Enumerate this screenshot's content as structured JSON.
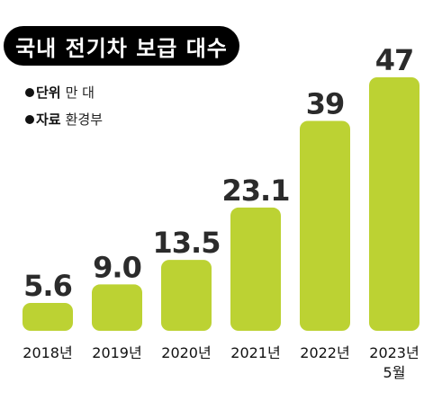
{
  "title": "국내 전기차 보급 대수",
  "unit": {
    "key": "단위",
    "value": "만 대"
  },
  "source": {
    "key": "자료",
    "value": "환경부"
  },
  "colors": {
    "bar": "#bcd233",
    "title_bg": "#000000",
    "title_text": "#ffffff",
    "value_text": "#2b2b2b"
  },
  "chart_data": {
    "type": "bar",
    "title": "국내 전기차 보급 대수",
    "categories": [
      "2018년",
      "2019년",
      "2020년",
      "2021년",
      "2022년",
      "2023년\n5월"
    ],
    "values": [
      5.6,
      9.0,
      13.5,
      23.1,
      39,
      47
    ],
    "value_labels": [
      "5.6",
      "9.0",
      "13.5",
      "23.1",
      "39",
      "47"
    ],
    "ylim": [
      0,
      47
    ],
    "xlabel": "",
    "ylabel": "",
    "grid": false,
    "legend": "none"
  }
}
